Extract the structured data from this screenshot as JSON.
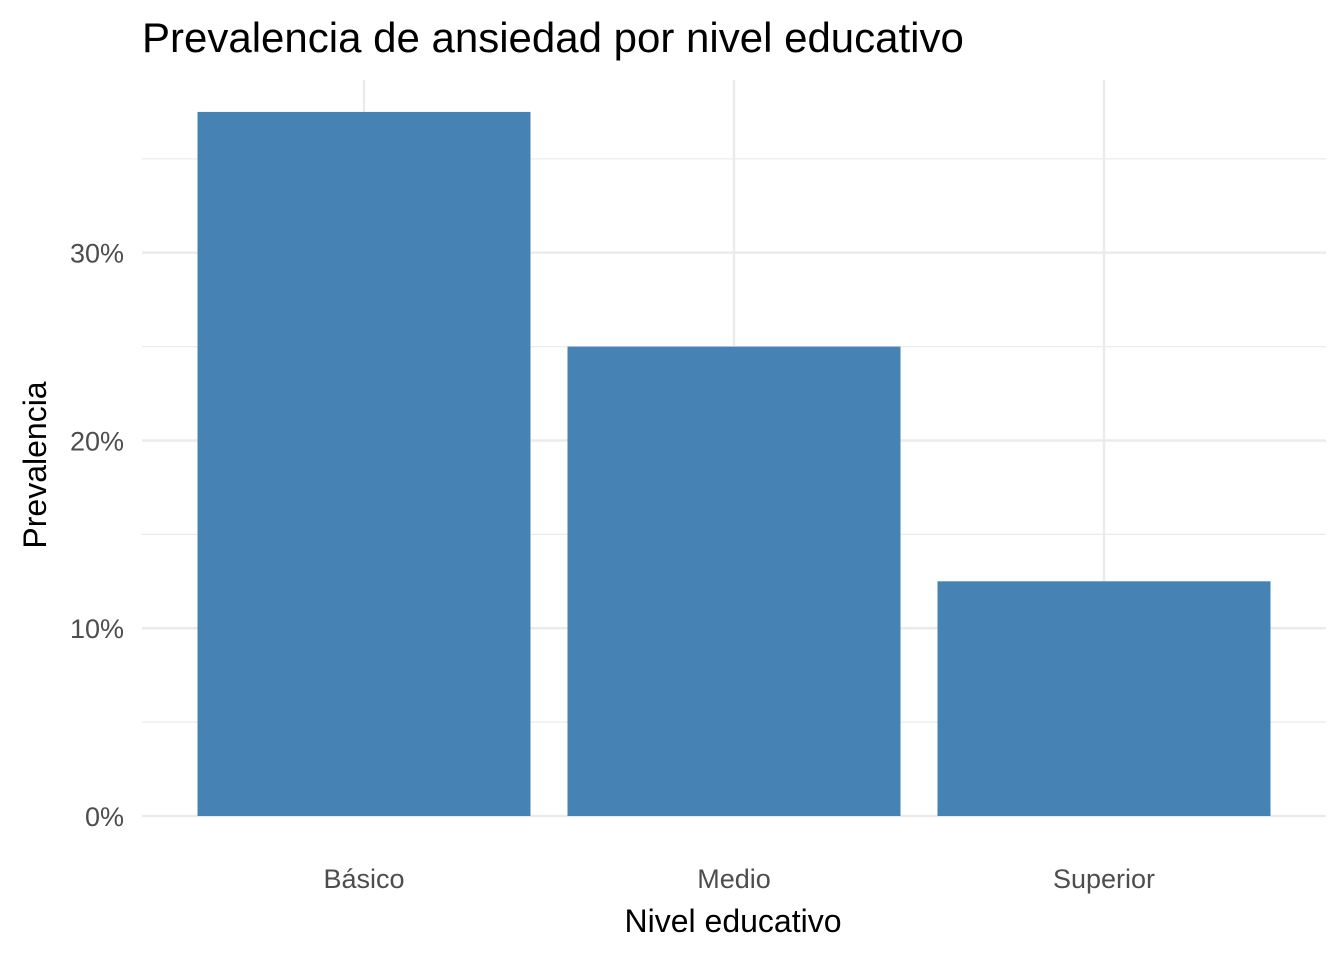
{
  "chart_data": {
    "type": "bar",
    "title": "Prevalencia de ansiedad por nivel educativo",
    "xlabel": "Nivel educativo",
    "ylabel": "Prevalencia",
    "categories": [
      "Básico",
      "Medio",
      "Superior"
    ],
    "values": [
      37.5,
      25.0,
      12.5
    ],
    "value_unit": "%",
    "ylim": [
      0,
      39.2
    ],
    "yticks": [
      0,
      10,
      20,
      30
    ],
    "ytick_labels": [
      "0%",
      "10%",
      "20%",
      "30%"
    ],
    "grid": true,
    "legend": "none",
    "bar_color": "#4682B4"
  }
}
